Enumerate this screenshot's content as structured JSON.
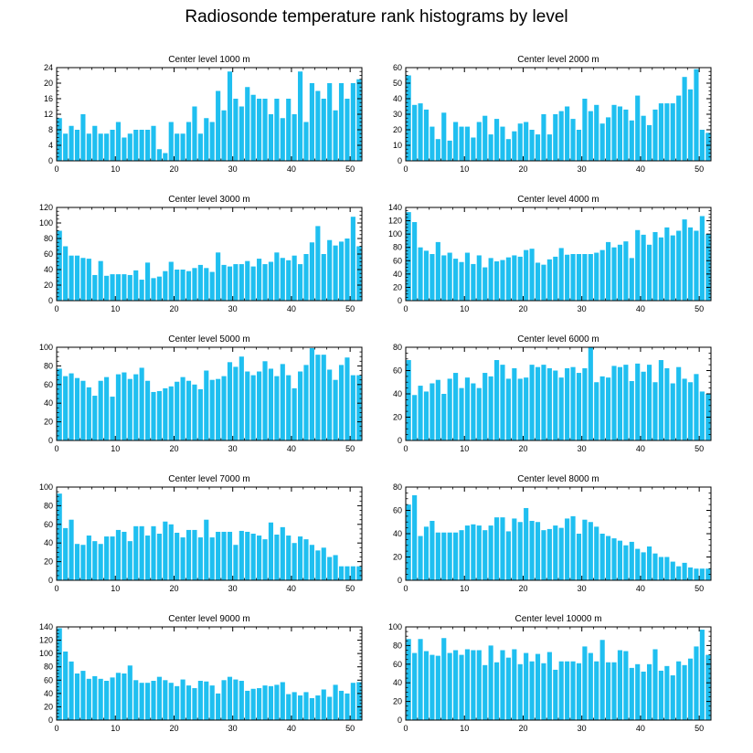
{
  "title": "Radiosonde temperature rank histograms by level",
  "bar_color": "#1fbff0",
  "chart_data": [
    {
      "type": "bar",
      "title": "Center level 1000 m",
      "xlim": [
        0,
        52
      ],
      "xticks": [
        0,
        10,
        20,
        30,
        40,
        50
      ],
      "ylim": [
        0,
        24
      ],
      "yticks": [
        0,
        4,
        8,
        12,
        16,
        20,
        24
      ],
      "values": [
        11,
        7,
        9,
        8,
        12,
        7,
        9,
        7,
        7,
        8,
        10,
        6,
        7,
        8,
        8,
        8,
        9,
        3,
        2,
        10,
        7,
        7,
        10,
        14,
        7,
        11,
        10,
        18,
        13,
        23,
        16,
        14,
        19,
        17,
        16,
        16,
        12,
        16,
        11,
        16,
        12,
        23,
        10,
        20,
        18,
        16,
        20,
        13,
        20,
        16,
        20,
        21
      ]
    },
    {
      "type": "bar",
      "title": "Center level 2000 m",
      "xlim": [
        0,
        52
      ],
      "xticks": [
        0,
        10,
        20,
        30,
        40,
        50
      ],
      "ylim": [
        0,
        60
      ],
      "yticks": [
        0,
        10,
        20,
        30,
        40,
        50,
        60
      ],
      "values": [
        55,
        36,
        37,
        33,
        22,
        14,
        31,
        13,
        25,
        22,
        22,
        15,
        25,
        29,
        17,
        27,
        22,
        14,
        19,
        24,
        25,
        20,
        17,
        30,
        17,
        30,
        32,
        35,
        27,
        20,
        40,
        32,
        36,
        24,
        28,
        36,
        35,
        33,
        26,
        42,
        29,
        23,
        33,
        37,
        37,
        37,
        42,
        54,
        46,
        59,
        20,
        18
      ]
    },
    {
      "type": "bar",
      "title": "Center level 3000 m",
      "xlim": [
        0,
        52
      ],
      "xticks": [
        0,
        10,
        20,
        30,
        40,
        50
      ],
      "ylim": [
        0,
        120
      ],
      "yticks": [
        0,
        20,
        40,
        60,
        80,
        100,
        120
      ],
      "values": [
        90,
        70,
        58,
        58,
        55,
        54,
        33,
        51,
        32,
        34,
        34,
        34,
        33,
        39,
        27,
        49,
        29,
        31,
        38,
        50,
        40,
        40,
        38,
        42,
        46,
        42,
        37,
        62,
        46,
        44,
        47,
        47,
        51,
        44,
        54,
        47,
        50,
        62,
        55,
        52,
        58,
        47,
        60,
        75,
        96,
        60,
        78,
        71,
        76,
        80,
        108,
        70
      ]
    },
    {
      "type": "bar",
      "title": "Center level 4000 m",
      "xlim": [
        0,
        52
      ],
      "xticks": [
        0,
        10,
        20,
        30,
        40,
        50
      ],
      "ylim": [
        0,
        140
      ],
      "yticks": [
        0,
        20,
        40,
        60,
        80,
        100,
        120,
        140
      ],
      "values": [
        133,
        118,
        80,
        75,
        70,
        88,
        68,
        72,
        63,
        58,
        72,
        55,
        68,
        50,
        64,
        59,
        61,
        65,
        68,
        66,
        76,
        78,
        57,
        54,
        62,
        66,
        79,
        69,
        70,
        70,
        70,
        70,
        72,
        76,
        88,
        80,
        84,
        89,
        64,
        106,
        99,
        84,
        103,
        95,
        110,
        98,
        105,
        122,
        110,
        105,
        127,
        100
      ]
    },
    {
      "type": "bar",
      "title": "Center level 5000 m",
      "xlim": [
        0,
        52
      ],
      "xticks": [
        0,
        10,
        20,
        30,
        40,
        50
      ],
      "ylim": [
        0,
        100
      ],
      "yticks": [
        0,
        20,
        40,
        60,
        80,
        100
      ],
      "values": [
        77,
        69,
        72,
        67,
        64,
        57,
        48,
        64,
        68,
        47,
        71,
        73,
        66,
        71,
        78,
        64,
        52,
        53,
        56,
        58,
        63,
        68,
        64,
        60,
        55,
        75,
        65,
        66,
        69,
        84,
        79,
        90,
        74,
        70,
        74,
        85,
        77,
        69,
        82,
        70,
        56,
        74,
        81,
        99,
        92,
        92,
        76,
        65,
        81,
        89,
        70,
        70
      ]
    },
    {
      "type": "bar",
      "title": "Center level 6000 m",
      "xlim": [
        0,
        52
      ],
      "xticks": [
        0,
        10,
        20,
        30,
        40,
        50
      ],
      "ylim": [
        0,
        80
      ],
      "yticks": [
        0,
        20,
        40,
        60,
        80
      ],
      "values": [
        69,
        39,
        47,
        42,
        49,
        52,
        40,
        53,
        58,
        45,
        54,
        49,
        45,
        58,
        55,
        69,
        65,
        53,
        62,
        53,
        54,
        65,
        63,
        65,
        62,
        60,
        54,
        62,
        63,
        58,
        62,
        80,
        50,
        55,
        54,
        64,
        63,
        65,
        51,
        66,
        59,
        65,
        50,
        69,
        62,
        49,
        63,
        53,
        50,
        57,
        42,
        40
      ]
    },
    {
      "type": "bar",
      "title": "Center level 7000 m",
      "xlim": [
        0,
        52
      ],
      "xticks": [
        0,
        10,
        20,
        30,
        40,
        50
      ],
      "ylim": [
        0,
        100
      ],
      "yticks": [
        0,
        20,
        40,
        60,
        80,
        100
      ],
      "values": [
        93,
        56,
        65,
        39,
        38,
        48,
        42,
        39,
        47,
        47,
        54,
        52,
        42,
        58,
        58,
        48,
        58,
        50,
        63,
        60,
        51,
        46,
        54,
        54,
        46,
        65,
        46,
        52,
        52,
        52,
        38,
        53,
        52,
        50,
        48,
        44,
        62,
        49,
        57,
        48,
        40,
        47,
        44,
        38,
        32,
        35,
        25,
        27,
        15,
        15,
        15,
        15
      ]
    },
    {
      "type": "bar",
      "title": "Center level 8000 m",
      "xlim": [
        0,
        52
      ],
      "xticks": [
        0,
        10,
        20,
        30,
        40,
        50
      ],
      "ylim": [
        0,
        80
      ],
      "yticks": [
        0,
        20,
        40,
        60,
        80
      ],
      "values": [
        65,
        73,
        38,
        46,
        51,
        41,
        41,
        41,
        41,
        43,
        47,
        48,
        47,
        43,
        47,
        54,
        54,
        42,
        53,
        50,
        62,
        51,
        50,
        43,
        44,
        47,
        45,
        53,
        55,
        40,
        52,
        50,
        46,
        40,
        38,
        36,
        34,
        30,
        33,
        27,
        24,
        29,
        23,
        20,
        20,
        16,
        12,
        15,
        11,
        10,
        10,
        10
      ]
    },
    {
      "type": "bar",
      "title": "Center level 9000 m",
      "xlim": [
        0,
        52
      ],
      "xticks": [
        0,
        10,
        20,
        30,
        40,
        50
      ],
      "ylim": [
        0,
        140
      ],
      "yticks": [
        0,
        20,
        40,
        60,
        80,
        100,
        120,
        140
      ],
      "values": [
        138,
        103,
        88,
        70,
        74,
        62,
        66,
        62,
        59,
        64,
        71,
        70,
        82,
        60,
        56,
        56,
        59,
        65,
        60,
        56,
        51,
        61,
        52,
        48,
        59,
        58,
        52,
        40,
        60,
        65,
        61,
        59,
        44,
        47,
        48,
        52,
        51,
        53,
        57,
        39,
        42,
        37,
        42,
        33,
        37,
        46,
        35,
        53,
        44,
        40,
        56,
        57
      ]
    },
    {
      "type": "bar",
      "title": "Center level 10000 m",
      "xlim": [
        0,
        52
      ],
      "xticks": [
        0,
        10,
        20,
        30,
        40,
        50
      ],
      "ylim": [
        0,
        100
      ],
      "yticks": [
        0,
        20,
        40,
        60,
        80,
        100
      ],
      "values": [
        87,
        72,
        87,
        74,
        70,
        69,
        88,
        72,
        75,
        70,
        76,
        75,
        75,
        59,
        80,
        62,
        75,
        67,
        76,
        60,
        72,
        63,
        71,
        61,
        73,
        54,
        63,
        63,
        63,
        61,
        79,
        72,
        63,
        86,
        62,
        62,
        75,
        74,
        56,
        60,
        52,
        60,
        76,
        53,
        58,
        48,
        63,
        59,
        66,
        79,
        97,
        70
      ]
    }
  ]
}
